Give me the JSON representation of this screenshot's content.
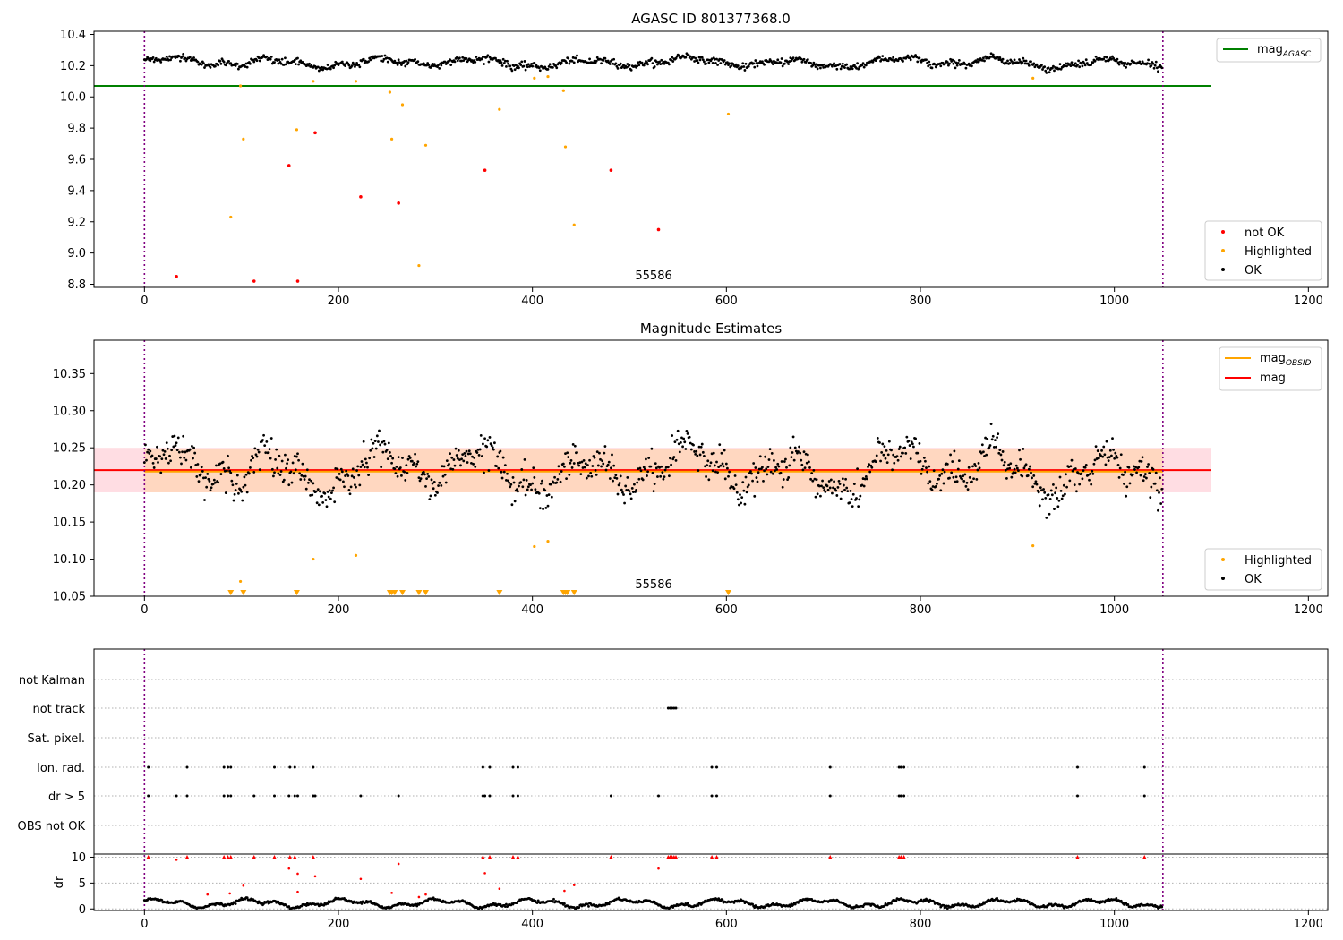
{
  "chart_data": [
    {
      "type": "scatter",
      "title": "AGASC ID 801377368.0",
      "annotation": "55586",
      "xlim": [
        -52,
        1220
      ],
      "ylim": [
        8.78,
        10.42
      ],
      "xticks": [
        0,
        200,
        400,
        600,
        800,
        1000,
        1200
      ],
      "yticks": [
        8.8,
        9.0,
        9.2,
        9.4,
        9.6,
        9.8,
        10.0,
        10.2,
        10.4
      ],
      "ytick_labels": [
        "8.8",
        "9.0",
        "9.2",
        "9.4",
        "9.6",
        "9.8",
        "10.0",
        "10.2",
        "10.4"
      ],
      "vlines": [
        0,
        1050
      ],
      "legend_top": {
        "entries": [
          {
            "label": "mag",
            "sub": "AGASC",
            "color": "#008000"
          }
        ],
        "placement": "top-right"
      },
      "legend_bottom": {
        "entries": [
          {
            "label": "not OK",
            "color": "#ff0000"
          },
          {
            "label": "Highlighted",
            "color": "#ffa500"
          },
          {
            "label": "OK",
            "color": "#000000"
          }
        ],
        "placement": "bottom-right"
      },
      "agasc_mag": {
        "value": 10.07,
        "x": [
          -52,
          1100
        ],
        "color": "#008000"
      },
      "ok_series": {
        "n": 1050,
        "mean": 10.22,
        "color": "#000000"
      },
      "highlighted": {
        "color": "#ffa500",
        "points": [
          [
            99,
            10.07
          ],
          [
            102,
            9.73
          ],
          [
            89,
            9.23
          ],
          [
            157,
            9.79
          ],
          [
            174,
            10.1
          ],
          [
            218,
            10.1
          ],
          [
            253,
            10.03
          ],
          [
            255,
            9.73
          ],
          [
            266,
            9.95
          ],
          [
            290,
            9.69
          ],
          [
            283,
            8.92
          ],
          [
            366,
            9.92
          ],
          [
            402,
            10.12
          ],
          [
            416,
            10.13
          ],
          [
            432,
            10.04
          ],
          [
            434,
            9.68
          ],
          [
            443,
            9.18
          ],
          [
            602,
            9.89
          ],
          [
            916,
            10.12
          ]
        ]
      },
      "not_ok": {
        "color": "#ff0000",
        "points": [
          [
            33,
            8.85
          ],
          [
            113,
            8.82
          ],
          [
            149,
            9.56
          ],
          [
            158,
            8.82
          ],
          [
            176,
            9.77
          ],
          [
            223,
            9.36
          ],
          [
            262,
            9.32
          ],
          [
            351,
            9.53
          ],
          [
            481,
            9.53
          ],
          [
            530,
            9.15
          ]
        ]
      }
    },
    {
      "type": "scatter",
      "title": "Magnitude Estimates",
      "annotation": "55586",
      "xlim": [
        -52,
        1220
      ],
      "ylim": [
        10.05,
        10.395
      ],
      "xticks": [
        0,
        200,
        400,
        600,
        800,
        1000,
        1200
      ],
      "yticks": [
        10.05,
        10.1,
        10.15,
        10.2,
        10.25,
        10.3,
        10.35
      ],
      "ytick_labels": [
        "10.05",
        "10.10",
        "10.15",
        "10.20",
        "10.25",
        "10.30",
        "10.35"
      ],
      "vlines": [
        0,
        1050
      ],
      "legend_top": {
        "entries": [
          {
            "label": "mag",
            "sub": "OBSID",
            "color": "#ffa500"
          },
          {
            "label": "mag",
            "color": "#ff0000"
          }
        ],
        "placement": "top-right"
      },
      "legend_bottom": {
        "entries": [
          {
            "label": "Highlighted",
            "color": "#ffa500"
          },
          {
            "label": "OK",
            "color": "#000000"
          }
        ],
        "placement": "bottom-right"
      },
      "mag": {
        "value": 10.22,
        "band": [
          10.19,
          10.25
        ],
        "x": [
          -52,
          1100
        ],
        "color": "#ff0000",
        "band_color": "#ffdde3"
      },
      "mag_obsid": {
        "value": 10.218,
        "band": [
          10.19,
          10.249
        ],
        "x": [
          0,
          1050
        ],
        "color": "#ffa500",
        "band_color": "#ffd7c0"
      },
      "highlighted": {
        "color": "#ffa500",
        "points": [
          [
            99,
            10.07
          ],
          [
            218,
            10.105
          ],
          [
            174,
            10.1
          ],
          [
            402,
            10.117
          ],
          [
            416,
            10.124
          ],
          [
            916,
            10.118
          ]
        ]
      },
      "below_range_markers": {
        "color": "#ffa500",
        "x": [
          89,
          102,
          157,
          253,
          255,
          258,
          266,
          283,
          290,
          366,
          432,
          434,
          436,
          443,
          602
        ]
      }
    },
    {
      "type": "scatter",
      "title": "",
      "xlim": [
        -52,
        1220
      ],
      "xticks": [
        0,
        200,
        400,
        600,
        800,
        1000,
        1200
      ],
      "vlines": [
        0,
        1050
      ],
      "flag_rows": [
        "not Kalman",
        "not track",
        "Sat. pixel.",
        "Ion. rad.",
        "dr > 5",
        "OBS not OK"
      ],
      "flags": {
        "not track": [
          540,
          542,
          544,
          546,
          548
        ],
        "Ion. rad.": [
          4,
          44,
          82,
          86,
          89,
          134,
          150,
          155,
          174,
          349,
          356,
          380,
          385,
          585,
          590,
          707,
          778,
          780,
          783,
          962,
          1031
        ],
        "dr > 5": [
          4,
          33,
          44,
          82,
          86,
          89,
          113,
          134,
          149,
          155,
          158,
          174,
          176,
          223,
          262,
          349,
          351,
          356,
          380,
          385,
          481,
          530,
          585,
          590,
          707,
          778,
          780,
          783,
          962,
          1031
        ]
      },
      "dr_panel": {
        "ylabel": "dr",
        "ylim": [
          -0.3,
          10.6
        ],
        "yticks": [
          0,
          5,
          10
        ],
        "ytick_labels": [
          "0",
          "5",
          "10"
        ],
        "ok_color": "#000000",
        "bad_color": "#ff0000",
        "capped": [
          4,
          44,
          82,
          86,
          89,
          113,
          134,
          150,
          155,
          174,
          349,
          356,
          380,
          385,
          481,
          540,
          542,
          544,
          546,
          548,
          585,
          590,
          707,
          778,
          780,
          783,
          962,
          1031
        ],
        "outliers": [
          [
            33,
            9.5
          ],
          [
            149,
            7.8
          ],
          [
            158,
            6.8
          ],
          [
            176,
            6.3
          ],
          [
            223,
            5.8
          ],
          [
            262,
            8.7
          ],
          [
            351,
            6.9
          ],
          [
            530,
            7.8
          ],
          [
            433,
            3.5
          ],
          [
            443,
            4.6
          ],
          [
            102,
            4.5
          ],
          [
            65,
            2.8
          ],
          [
            88,
            3.0
          ],
          [
            158,
            3.3
          ],
          [
            255,
            3.1
          ],
          [
            290,
            2.8
          ],
          [
            366,
            3.9
          ],
          [
            283,
            2.3
          ]
        ]
      }
    }
  ]
}
